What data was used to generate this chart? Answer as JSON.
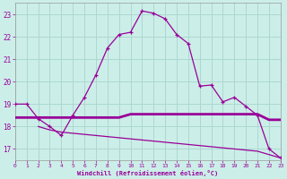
{
  "xlabel": "Windchill (Refroidissement éolien,°C)",
  "bg_color": "#cceee8",
  "grid_color": "#aad8d0",
  "line_color": "#990099",
  "xlim": [
    0,
    23
  ],
  "ylim": [
    16.5,
    23.5
  ],
  "yticks": [
    17,
    18,
    19,
    20,
    21,
    22,
    23
  ],
  "xticks": [
    0,
    1,
    2,
    3,
    4,
    5,
    6,
    7,
    8,
    9,
    10,
    11,
    12,
    13,
    14,
    15,
    16,
    17,
    18,
    19,
    20,
    21,
    22,
    23
  ],
  "line1_x": [
    0,
    1,
    2,
    3,
    4,
    5,
    6,
    7,
    8,
    9,
    10,
    11,
    12,
    13,
    14,
    15,
    16,
    17,
    18,
    19,
    20,
    21,
    22,
    23
  ],
  "line1_y": [
    19.0,
    19.0,
    18.35,
    18.0,
    17.6,
    18.5,
    19.3,
    20.3,
    21.5,
    22.1,
    22.2,
    23.15,
    23.05,
    22.8,
    22.1,
    21.7,
    19.8,
    19.85,
    19.1,
    19.3,
    18.9,
    18.5,
    17.0,
    16.6
  ],
  "line2_x": [
    0,
    2,
    3,
    4,
    5,
    6,
    7,
    8,
    9,
    10,
    11,
    12,
    13,
    14,
    15,
    16,
    17,
    18,
    19,
    20,
    21,
    22,
    23
  ],
  "line2_y": [
    18.4,
    18.4,
    18.4,
    18.4,
    18.4,
    18.4,
    18.4,
    18.4,
    18.4,
    18.55,
    18.55,
    18.55,
    18.55,
    18.55,
    18.55,
    18.55,
    18.55,
    18.55,
    18.55,
    18.55,
    18.55,
    18.3,
    18.3
  ],
  "line3_x": [
    2,
    3,
    4,
    5,
    6,
    7,
    8,
    9,
    10,
    11,
    12,
    13,
    14,
    15,
    16,
    17,
    18,
    19,
    20,
    21,
    22,
    23
  ],
  "line3_y": [
    18.0,
    17.85,
    17.75,
    17.7,
    17.65,
    17.6,
    17.55,
    17.5,
    17.45,
    17.4,
    17.35,
    17.3,
    17.25,
    17.2,
    17.15,
    17.1,
    17.05,
    17.0,
    16.95,
    16.9,
    16.75,
    16.6
  ]
}
